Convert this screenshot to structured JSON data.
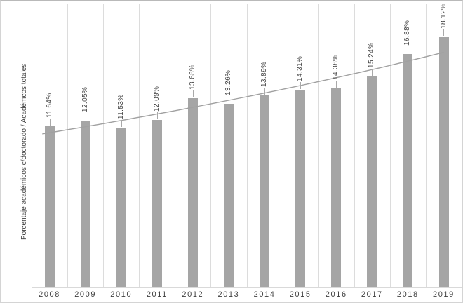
{
  "chart_data": {
    "type": "bar",
    "categories": [
      "2008",
      "2009",
      "2010",
      "2011",
      "2012",
      "2013",
      "2014",
      "2015",
      "2016",
      "2017",
      "2018",
      "2019"
    ],
    "values": [
      11.64,
      12.05,
      11.53,
      12.09,
      13.68,
      13.26,
      13.89,
      14.31,
      14.38,
      15.24,
      16.88,
      18.12
    ],
    "value_labels": [
      "11.64%",
      "12.05%",
      "11.53%",
      "12.09%",
      "13.68%",
      "13.26%",
      "13.89%",
      "14.31%",
      "14.38%",
      "15.24%",
      "16.88%",
      "18.12%"
    ],
    "ylabel": "Porcentaje académicos c/doctorado / Académcos totales",
    "ylim": [
      0,
      20.5
    ],
    "grid": "vertical-gridlines-only",
    "legend": "none",
    "data_label_style": "rotated-90-above-bar-with-leader-line",
    "trendline": {
      "type": "exponential",
      "fitted_to": "values"
    },
    "colors": {
      "bar": "#a5a5a5",
      "trendline": "#a0a0a0",
      "gridline": "#dcdcdc",
      "axis_line": "#d9d9d9",
      "leader_line": "#a9a9a9",
      "text": "#3f3f3f",
      "border": "#cccccc",
      "background": "#ffffff"
    }
  }
}
